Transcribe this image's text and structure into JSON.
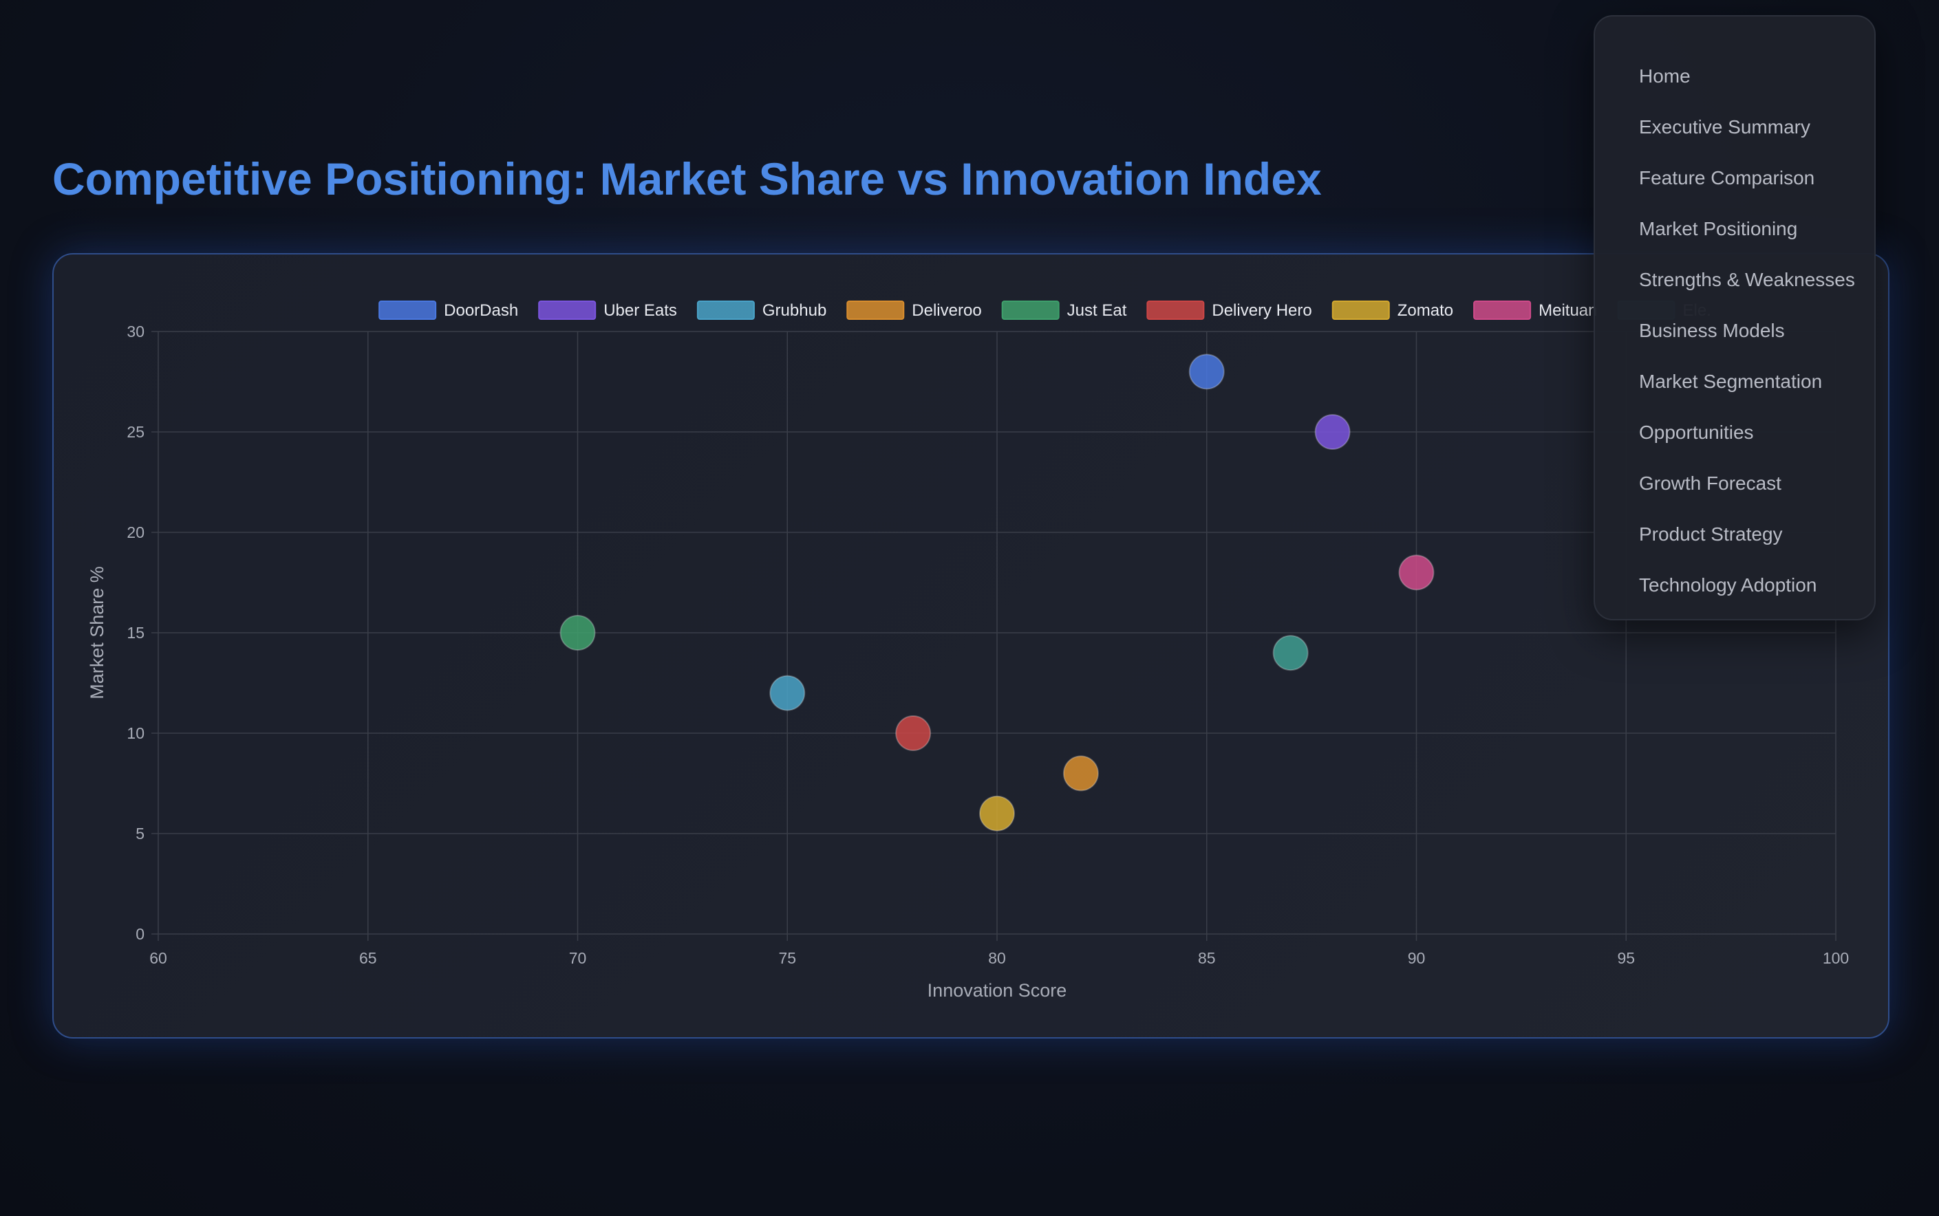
{
  "page": {
    "title": "Competitive Positioning: Market Share vs Innovation Index"
  },
  "nav": {
    "items": [
      "Home",
      "Executive Summary",
      "Feature Comparison",
      "Market Positioning",
      "Strengths & Weaknesses",
      "Business Models",
      "Market Segmentation",
      "Opportunities",
      "Growth Forecast",
      "Product Strategy",
      "Technology Adoption"
    ]
  },
  "colors": {
    "title": "#4d8ae6",
    "grid": "#3a3e49",
    "tick": "#a9adb8"
  },
  "chart_data": {
    "type": "scatter",
    "title": "",
    "xlabel": "Innovation Score",
    "ylabel": "Market Share %",
    "xlim": [
      60,
      100
    ],
    "ylim": [
      0,
      30
    ],
    "xticks": [
      60,
      65,
      70,
      75,
      80,
      85,
      90,
      95,
      100
    ],
    "yticks": [
      0,
      5,
      10,
      15,
      20,
      25,
      30
    ],
    "grid": true,
    "legend_position": "top",
    "series": [
      {
        "name": "DoorDash",
        "x": 85,
        "y": 28,
        "color": "#4a78e0"
      },
      {
        "name": "Uber Eats",
        "x": 88,
        "y": 25,
        "color": "#7b55de"
      },
      {
        "name": "Grubhub",
        "x": 75,
        "y": 12,
        "color": "#4aa3c8"
      },
      {
        "name": "Deliveroo",
        "x": 82,
        "y": 8,
        "color": "#d98e2e"
      },
      {
        "name": "Just Eat",
        "x": 70,
        "y": 15,
        "color": "#3fa06c"
      },
      {
        "name": "Delivery Hero",
        "x": 78,
        "y": 10,
        "color": "#cc4646"
      },
      {
        "name": "Zomato",
        "x": 80,
        "y": 6,
        "color": "#d4a92f"
      },
      {
        "name": "Meituan",
        "x": 90,
        "y": 18,
        "color": "#cf4b8a"
      },
      {
        "name": "Ele.",
        "x": 87,
        "y": 14,
        "color": "#3f9e92"
      }
    ]
  }
}
